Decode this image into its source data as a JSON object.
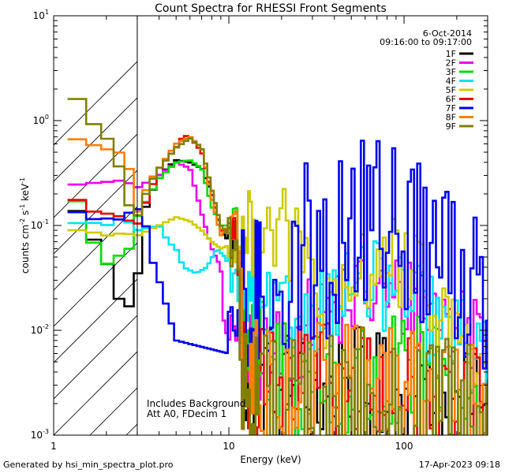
{
  "chart_data": {
    "type": "line",
    "title": "Count Spectra for RHESSI Front Segments",
    "xlabel": "Energy (keV)",
    "ylabel_parts": {
      "a": "counts cm",
      "b": "-2",
      "c": " s",
      "d": "-1",
      "e": " keV",
      "f": "-1"
    },
    "xscale": "log",
    "yscale": "log",
    "xlim": [
      1,
      300
    ],
    "ylim": [
      0.001,
      10
    ],
    "x_ticks": [
      {
        "v": 1,
        "label": "1"
      },
      {
        "v": 10,
        "label": "10"
      },
      {
        "v": 100,
        "label": "100"
      }
    ],
    "y_ticks": [
      {
        "v": 0.001,
        "base": "10",
        "exp": "-3"
      },
      {
        "v": 0.01,
        "base": "10",
        "exp": "-2"
      },
      {
        "v": 0.1,
        "base": "10",
        "exp": "-1"
      },
      {
        "v": 1,
        "base": "10",
        "exp": "0"
      },
      {
        "v": 10,
        "base": "10",
        "exp": "1"
      }
    ],
    "hatched_region_xmax": 3,
    "date": "6-Oct-2014",
    "time_range": "09:16:00 to 09:17:00",
    "annotations": [
      "Includes Background",
      "Att A0, FDecim 1"
    ],
    "legend_position": "top-right",
    "series": [
      {
        "name": "1F",
        "color": "#000000",
        "anchors": [
          [
            1.2,
            0.23
          ],
          [
            1.5,
            0.09
          ],
          [
            1.9,
            0.06
          ],
          [
            2.3,
            0.022
          ],
          [
            2.6,
            0.014
          ],
          [
            3.0,
            0.03
          ],
          [
            3.3,
            0.14
          ],
          [
            4.0,
            0.3
          ],
          [
            5.0,
            0.42
          ],
          [
            6.0,
            0.4
          ],
          [
            7.0,
            0.35
          ],
          [
            8.0,
            0.2
          ],
          [
            9.0,
            0.09
          ],
          [
            10,
            0.07
          ],
          [
            11,
            0.08
          ],
          [
            12,
            0.004
          ],
          [
            15,
            0.0025
          ],
          [
            20,
            0.003
          ],
          [
            30,
            0.002
          ],
          [
            50,
            0.0025
          ],
          [
            80,
            0.002
          ],
          [
            120,
            0.002
          ],
          [
            200,
            0.0015
          ],
          [
            300,
            0.0012
          ]
        ],
        "noise": 0.3
      },
      {
        "name": "2F",
        "color": "#ee00ee",
        "anchors": [
          [
            1.2,
            0.24
          ],
          [
            1.5,
            0.25
          ],
          [
            2.0,
            0.26
          ],
          [
            2.5,
            0.27
          ],
          [
            3.0,
            0.23
          ],
          [
            4.0,
            0.3
          ],
          [
            5.0,
            0.4
          ],
          [
            6.0,
            0.35
          ],
          [
            7.0,
            0.13
          ],
          [
            8.0,
            0.06
          ],
          [
            9.0,
            0.04
          ],
          [
            9.5,
            0.008
          ],
          [
            10,
            0.012
          ],
          [
            11,
            0.008
          ],
          [
            12,
            0.005
          ],
          [
            20,
            0.006
          ],
          [
            30,
            0.012
          ],
          [
            40,
            0.018
          ],
          [
            60,
            0.022
          ],
          [
            80,
            0.02
          ],
          [
            100,
            0.02
          ],
          [
            150,
            0.015
          ],
          [
            200,
            0.012
          ],
          [
            300,
            0.01
          ]
        ],
        "noise": 0.2
      },
      {
        "name": "3F",
        "color": "#00dd00",
        "anchors": [
          [
            1.2,
            0.26
          ],
          [
            1.5,
            0.12
          ],
          [
            1.9,
            0.04
          ],
          [
            2.3,
            0.05
          ],
          [
            2.7,
            0.06
          ],
          [
            3.0,
            0.12
          ],
          [
            4.0,
            0.28
          ],
          [
            5.0,
            0.4
          ],
          [
            6.0,
            0.42
          ],
          [
            7.0,
            0.35
          ],
          [
            8.0,
            0.15
          ],
          [
            9.0,
            0.1
          ],
          [
            10,
            0.1
          ],
          [
            11,
            0.12
          ],
          [
            13,
            0.005
          ],
          [
            20,
            0.004
          ],
          [
            40,
            0.003
          ],
          [
            80,
            0.003
          ],
          [
            150,
            0.003
          ],
          [
            300,
            0.002
          ]
        ],
        "noise": 0.3
      },
      {
        "name": "4F",
        "color": "#00e5ee",
        "anchors": [
          [
            1.2,
            0.1
          ],
          [
            1.5,
            0.11
          ],
          [
            2.0,
            0.1
          ],
          [
            2.5,
            0.12
          ],
          [
            3.0,
            0.09
          ],
          [
            4.0,
            0.1
          ],
          [
            4.5,
            0.07
          ],
          [
            5.0,
            0.06
          ],
          [
            5.5,
            0.04
          ],
          [
            6.5,
            0.035
          ],
          [
            7.5,
            0.04
          ],
          [
            8.5,
            0.06
          ],
          [
            9.5,
            0.05
          ],
          [
            10,
            0.04
          ],
          [
            12,
            0.02
          ],
          [
            15,
            0.014
          ],
          [
            20,
            0.012
          ],
          [
            30,
            0.015
          ],
          [
            40,
            0.02
          ],
          [
            60,
            0.028
          ],
          [
            80,
            0.025
          ],
          [
            100,
            0.02
          ],
          [
            150,
            0.012
          ],
          [
            200,
            0.008
          ],
          [
            300,
            0.006
          ]
        ],
        "noise": 0.2
      },
      {
        "name": "5F",
        "color": "#cccc00",
        "anchors": [
          [
            1.2,
            0.09
          ],
          [
            1.5,
            0.09
          ],
          [
            2.0,
            0.08
          ],
          [
            2.5,
            0.085
          ],
          [
            3.0,
            0.08
          ],
          [
            4.0,
            0.1
          ],
          [
            5.0,
            0.12
          ],
          [
            6.0,
            0.11
          ],
          [
            7.0,
            0.09
          ],
          [
            8.0,
            0.07
          ],
          [
            9.0,
            0.06
          ],
          [
            10,
            0.065
          ],
          [
            11,
            0.07
          ],
          [
            13,
            0.08
          ],
          [
            16,
            0.1
          ],
          [
            20,
            0.09
          ],
          [
            25,
            0.06
          ],
          [
            30,
            0.03
          ],
          [
            35,
            0.015
          ],
          [
            40,
            0.012
          ],
          [
            50,
            0.02
          ],
          [
            60,
            0.04
          ],
          [
            80,
            0.05
          ],
          [
            100,
            0.04
          ],
          [
            150,
            0.018
          ],
          [
            200,
            0.01
          ],
          [
            300,
            0.004
          ]
        ],
        "noise": 0.2
      },
      {
        "name": "6F",
        "color": "#ee0000",
        "anchors": [
          [
            1.2,
            0.23
          ],
          [
            1.5,
            0.14
          ],
          [
            2.0,
            0.13
          ],
          [
            2.5,
            0.12
          ],
          [
            3.0,
            0.1
          ],
          [
            4.0,
            0.35
          ],
          [
            5.0,
            0.55
          ],
          [
            5.5,
            0.72
          ],
          [
            6.0,
            0.7
          ],
          [
            7.0,
            0.5
          ],
          [
            8.0,
            0.2
          ],
          [
            9.0,
            0.09
          ],
          [
            10,
            0.09
          ],
          [
            11,
            0.12
          ],
          [
            12,
            0.004
          ],
          [
            20,
            0.003
          ],
          [
            40,
            0.0025
          ],
          [
            80,
            0.002
          ],
          [
            150,
            0.0018
          ],
          [
            300,
            0.0015
          ]
        ],
        "noise": 0.3
      },
      {
        "name": "7F",
        "color": "#0000ee",
        "anchors": [
          [
            1.2,
            0.17
          ],
          [
            1.5,
            0.11
          ],
          [
            1.9,
            0.12
          ],
          [
            2.3,
            0.11
          ],
          [
            2.6,
            0.13
          ],
          [
            3.0,
            0.14
          ],
          [
            3.2,
            0.16
          ],
          [
            3.6,
            0.05
          ],
          [
            4.0,
            0.03
          ],
          [
            4.5,
            0.015
          ],
          [
            5.0,
            0.008
          ],
          [
            10,
            0.006
          ],
          [
            11,
            0.012
          ],
          [
            14,
            0.014
          ],
          [
            16,
            0.025
          ],
          [
            20,
            0.04
          ],
          [
            24,
            0.03
          ],
          [
            28,
            0.06
          ],
          [
            32,
            0.05
          ],
          [
            36,
            0.04
          ],
          [
            40,
            0.06
          ],
          [
            45,
            0.1
          ],
          [
            50,
            0.08
          ],
          [
            55,
            0.12
          ],
          [
            60,
            0.09
          ],
          [
            70,
            0.1
          ],
          [
            80,
            0.14
          ],
          [
            90,
            0.09
          ],
          [
            100,
            0.11
          ],
          [
            120,
            0.07
          ],
          [
            140,
            0.06
          ],
          [
            160,
            0.04
          ],
          [
            180,
            0.05
          ],
          [
            200,
            0.03
          ],
          [
            250,
            0.04
          ],
          [
            300,
            0.03
          ]
        ],
        "noise": 0.4
      },
      {
        "name": "8F",
        "color": "#ff7f00",
        "anchors": [
          [
            1.2,
            0.72
          ],
          [
            1.5,
            0.62
          ],
          [
            1.9,
            0.55
          ],
          [
            2.3,
            0.5
          ],
          [
            2.6,
            0.48
          ],
          [
            3.0,
            0.13
          ],
          [
            3.5,
            0.26
          ],
          [
            4.0,
            0.35
          ],
          [
            5.0,
            0.6
          ],
          [
            6.0,
            0.7
          ],
          [
            7.0,
            0.55
          ],
          [
            8.0,
            0.18
          ],
          [
            9.0,
            0.08
          ],
          [
            10,
            0.1
          ],
          [
            11,
            0.15
          ],
          [
            12,
            0.004
          ],
          [
            20,
            0.003
          ],
          [
            40,
            0.0025
          ],
          [
            80,
            0.0025
          ],
          [
            150,
            0.002
          ],
          [
            300,
            0.0015
          ]
        ],
        "noise": 0.3
      },
      {
        "name": "9F",
        "color": "#808000",
        "anchors": [
          [
            1.2,
            2.1
          ],
          [
            1.4,
            1.5
          ],
          [
            1.6,
            1.0
          ],
          [
            1.8,
            0.85
          ],
          [
            2.0,
            0.7
          ],
          [
            2.3,
            0.45
          ],
          [
            2.6,
            0.17
          ],
          [
            3.0,
            0.12
          ],
          [
            3.5,
            0.24
          ],
          [
            4.0,
            0.35
          ],
          [
            5.0,
            0.55
          ],
          [
            6.0,
            0.68
          ],
          [
            7.0,
            0.55
          ],
          [
            8.0,
            0.22
          ],
          [
            9.0,
            0.1
          ],
          [
            10,
            0.08
          ],
          [
            11,
            0.06
          ],
          [
            12,
            0.003
          ],
          [
            20,
            0.002
          ],
          [
            40,
            0.002
          ],
          [
            80,
            0.0018
          ],
          [
            150,
            0.0015
          ],
          [
            300,
            0.0012
          ]
        ],
        "noise": 0.35
      }
    ]
  },
  "footer": {
    "generated_by": "Generated by hsi_min_spectra_plot.pro",
    "timestamp": "17-Apr-2023 09:18"
  }
}
